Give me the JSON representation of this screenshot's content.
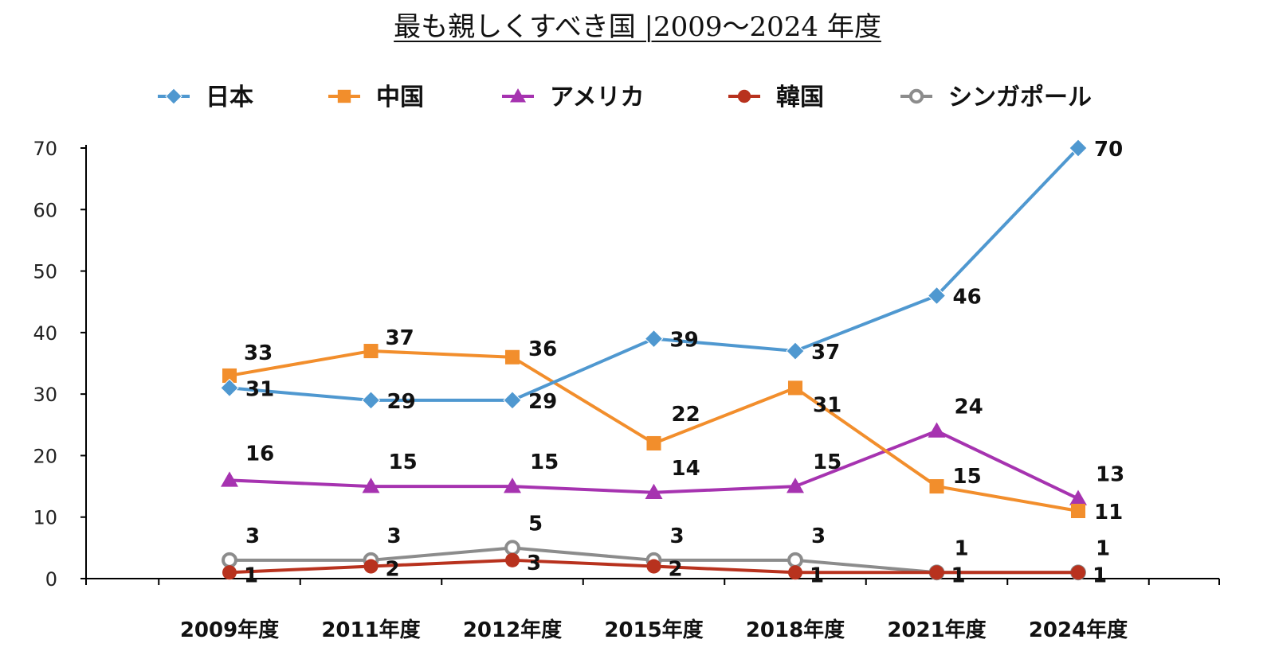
{
  "chart_data": {
    "type": "line",
    "title": "最も親しくすべき国 |2009〜2024 年度",
    "categories": [
      "2009年度",
      "2011年度",
      "2012年度",
      "2015年度",
      "2018年度",
      "2021年度",
      "2024年度"
    ],
    "ylim": [
      0,
      70
    ],
    "yticks": [
      "0",
      "10",
      "20",
      "30",
      "40",
      "50",
      "60",
      "70"
    ],
    "grid": false,
    "legend_position": "top",
    "series": [
      {
        "name": "日本",
        "values": [
          31,
          29,
          29,
          39,
          37,
          46,
          70
        ],
        "color": "#4f98d0",
        "marker": "diamond"
      },
      {
        "name": "中国",
        "values": [
          33,
          37,
          36,
          22,
          31,
          15,
          11
        ],
        "color": "#f28e2c",
        "marker": "square"
      },
      {
        "name": "アメリカ",
        "values": [
          16,
          15,
          15,
          14,
          15,
          24,
          13
        ],
        "color": "#a633b0",
        "marker": "triangle"
      },
      {
        "name": "韓国",
        "values": [
          1,
          2,
          3,
          2,
          1,
          1,
          1
        ],
        "color": "#b8321e",
        "marker": "circle"
      },
      {
        "name": "シンガポール",
        "values": [
          3,
          3,
          5,
          3,
          3,
          1,
          1
        ],
        "color": "#8c8c8c",
        "marker": "open-circle"
      }
    ]
  }
}
